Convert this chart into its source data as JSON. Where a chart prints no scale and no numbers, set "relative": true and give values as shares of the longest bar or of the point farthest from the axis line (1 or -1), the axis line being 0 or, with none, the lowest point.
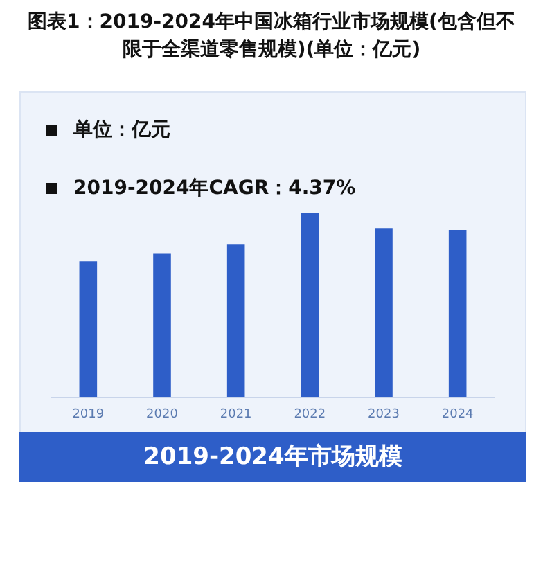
{
  "chart_data": {
    "type": "bar",
    "title": "图表1：2019-2024年中国冰箱行业市场规模(包含但不限于全渠道零售规模)(单位：亿元)",
    "annotations": [
      "单位：亿元",
      "2019-2024年CAGR：4.37%"
    ],
    "xlabel": "2019-2024年市场规模",
    "categories": [
      "2019",
      "2020",
      "2021",
      "2022",
      "2023",
      "2024"
    ],
    "values": [
      0.74,
      0.78,
      0.83,
      1,
      0.92,
      0.91
    ],
    "color": "#2e5ec8",
    "relative": true
  }
}
